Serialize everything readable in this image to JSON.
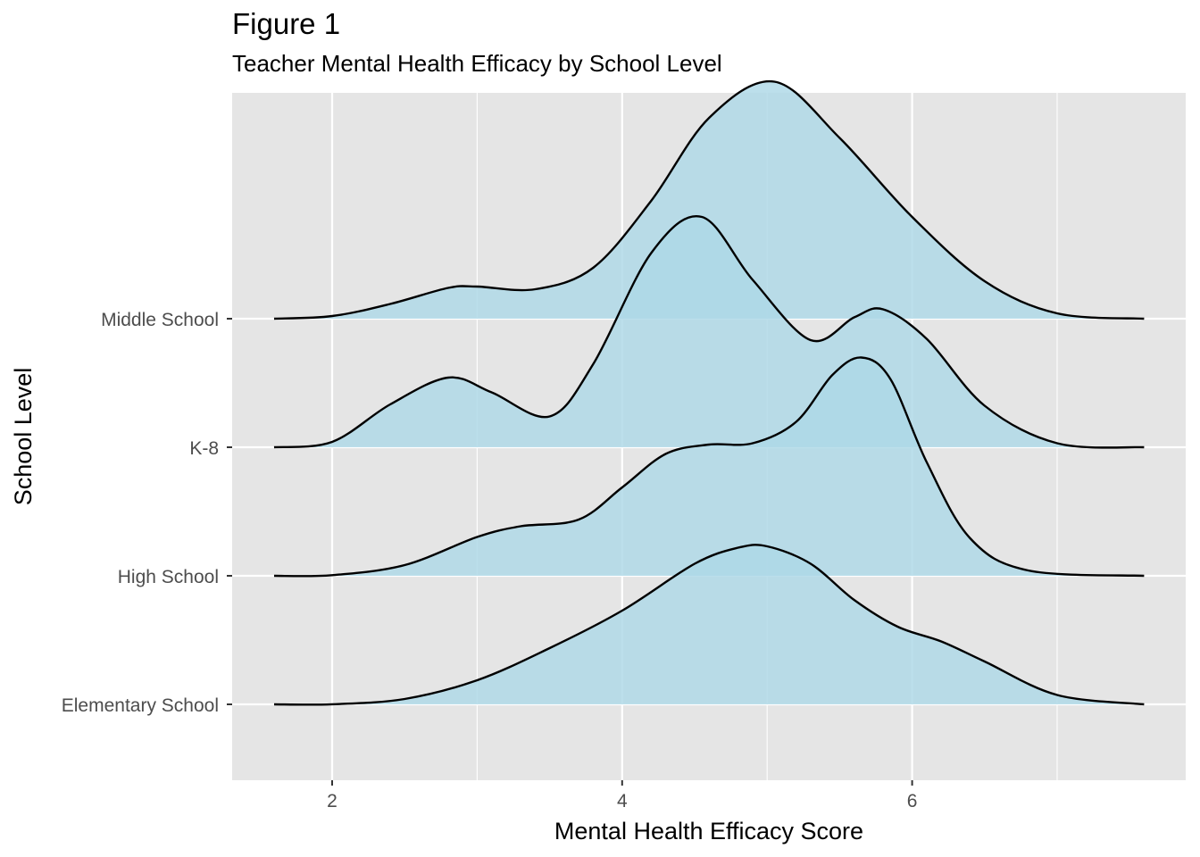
{
  "title": "Figure 1",
  "subtitle": "Teacher Mental Health Efficacy by School Level",
  "chart_data": {
    "type": "area",
    "subtype": "ridgeline density",
    "xlabel": "Mental Health Efficacy Score",
    "ylabel": "School Level",
    "xlim": [
      1.3,
      7.8
    ],
    "x_ticks": [
      2,
      4,
      6
    ],
    "grid": true,
    "fill_color": "#add8e6",
    "line_color": "#000000",
    "panel_color": "#e5e5e5",
    "categories": [
      "Elementary School",
      "High School",
      "K-8",
      "Middle School"
    ],
    "series": [
      {
        "name": "Elementary School",
        "x": [
          1.6,
          2.0,
          2.5,
          3.0,
          3.5,
          4.0,
          4.5,
          4.8,
          5.0,
          5.3,
          5.6,
          5.9,
          6.2,
          6.5,
          7.0,
          7.6
        ],
        "values": [
          0.0,
          0.001,
          0.04,
          0.18,
          0.42,
          0.7,
          1.05,
          1.17,
          1.18,
          1.05,
          0.78,
          0.58,
          0.47,
          0.32,
          0.07,
          0.0
        ]
      },
      {
        "name": "High School",
        "x": [
          1.6,
          2.0,
          2.5,
          3.0,
          3.3,
          3.7,
          4.0,
          4.3,
          4.6,
          4.9,
          5.2,
          5.45,
          5.65,
          5.85,
          6.1,
          6.4,
          6.8,
          7.6
        ],
        "values": [
          0.0,
          0.005,
          0.08,
          0.29,
          0.37,
          0.42,
          0.66,
          0.91,
          0.98,
          0.99,
          1.15,
          1.5,
          1.63,
          1.47,
          0.85,
          0.28,
          0.04,
          0.0
        ]
      },
      {
        "name": "K-8",
        "x": [
          1.6,
          2.0,
          2.4,
          2.8,
          3.1,
          3.5,
          3.8,
          4.2,
          4.55,
          4.9,
          5.3,
          5.6,
          5.8,
          6.1,
          6.5,
          7.0,
          7.6
        ],
        "values": [
          0.0,
          0.04,
          0.32,
          0.52,
          0.41,
          0.23,
          0.62,
          1.45,
          1.72,
          1.25,
          0.8,
          0.97,
          1.03,
          0.81,
          0.31,
          0.03,
          0.0
        ]
      },
      {
        "name": "Middle School",
        "x": [
          1.6,
          2.0,
          2.4,
          2.8,
          3.0,
          3.4,
          3.8,
          4.2,
          4.6,
          5.05,
          5.5,
          6.0,
          6.5,
          7.0,
          7.6
        ],
        "values": [
          0.0,
          0.02,
          0.11,
          0.23,
          0.24,
          0.22,
          0.38,
          0.88,
          1.5,
          1.77,
          1.35,
          0.76,
          0.28,
          0.04,
          0.0
        ]
      }
    ]
  }
}
